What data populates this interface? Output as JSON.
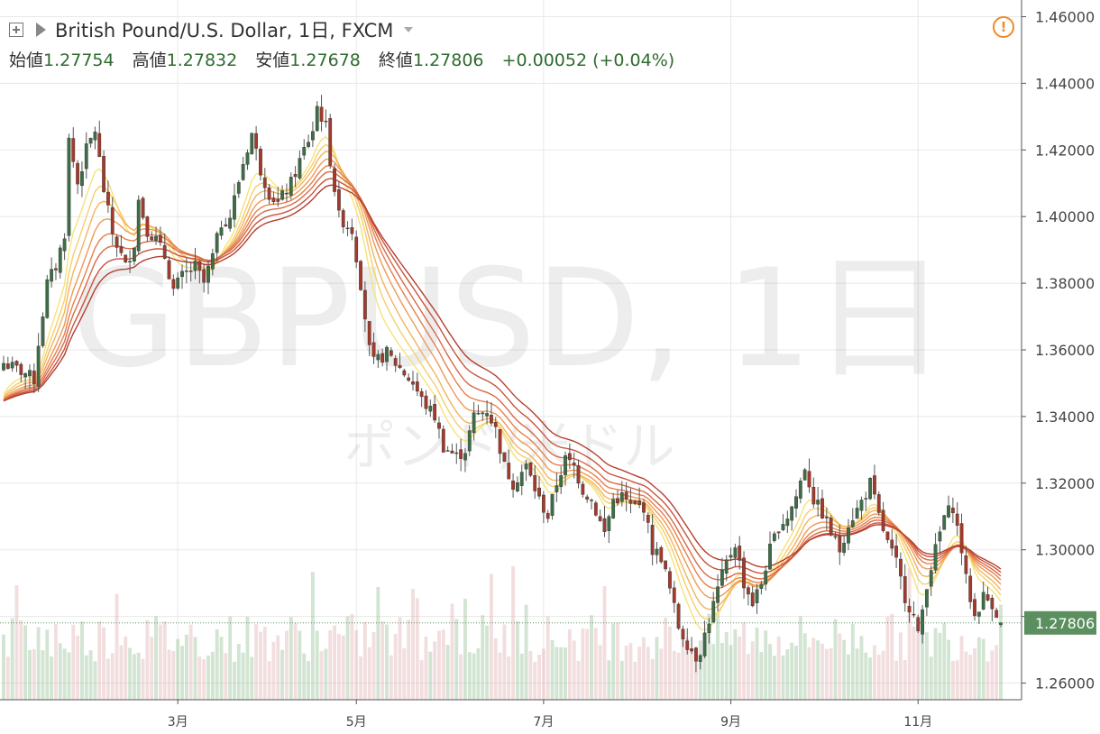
{
  "header": {
    "title": "British Pound/U.S. Dollar, 1日, FXCM",
    "open_label": "始値",
    "open": "1.27754",
    "high_label": "高値",
    "high": "1.27832",
    "low_label": "安値",
    "low": "1.27678",
    "close_label": "終値",
    "close": "1.27806",
    "change": "+0.00052 (+0.04%)"
  },
  "watermark": {
    "symbol": "GBPUSD, 1日",
    "name": "ポンド/米ドル"
  },
  "price_tag": "1.27806",
  "colors": {
    "up": "#3d6e45",
    "down": "#a33a2c",
    "grid": "#e8e8e8",
    "tag": "#5b8f5f",
    "warn": "#f08a24"
  },
  "chart_data": {
    "type": "candlestick",
    "symbol": "GBPUSD",
    "interval": "1日",
    "y_ticks": [
      "1.46000",
      "1.44000",
      "1.42000",
      "1.40000",
      "1.38000",
      "1.36000",
      "1.34000",
      "1.32000",
      "1.30000",
      "1.28000",
      "1.26000"
    ],
    "ylim": [
      1.255,
      1.465
    ],
    "x_ticks": [
      {
        "label": "3月",
        "idx": 40
      },
      {
        "label": "5月",
        "idx": 81
      },
      {
        "label": "7月",
        "idx": 124
      },
      {
        "label": "9月",
        "idx": 167
      },
      {
        "label": "11月",
        "idx": 210
      }
    ],
    "n_days": 230,
    "closes": [
      [
        0,
        1.356
      ],
      [
        5,
        1.353
      ],
      [
        7,
        1.351
      ],
      [
        8,
        1.362
      ],
      [
        10,
        1.38
      ],
      [
        12,
        1.385
      ],
      [
        14,
        1.395
      ],
      [
        15,
        1.423
      ],
      [
        17,
        1.41
      ],
      [
        19,
        1.42
      ],
      [
        21,
        1.426
      ],
      [
        23,
        1.408
      ],
      [
        25,
        1.395
      ],
      [
        28,
        1.385
      ],
      [
        30,
        1.392
      ],
      [
        31,
        1.405
      ],
      [
        33,
        1.396
      ],
      [
        35,
        1.393
      ],
      [
        37,
        1.388
      ],
      [
        39,
        1.378
      ],
      [
        41,
        1.382
      ],
      [
        44,
        1.385
      ],
      [
        46,
        1.38
      ],
      [
        48,
        1.388
      ],
      [
        50,
        1.398
      ],
      [
        52,
        1.4
      ],
      [
        55,
        1.416
      ],
      [
        57,
        1.425
      ],
      [
        59,
        1.414
      ],
      [
        61,
        1.407
      ],
      [
        63,
        1.404
      ],
      [
        66,
        1.41
      ],
      [
        69,
        1.42
      ],
      [
        71,
        1.426
      ],
      [
        72,
        1.433
      ],
      [
        74,
        1.427
      ],
      [
        75,
        1.417
      ],
      [
        77,
        1.4
      ],
      [
        80,
        1.396
      ],
      [
        82,
        1.38
      ],
      [
        83,
        1.37
      ],
      [
        84,
        1.36
      ],
      [
        85,
        1.356
      ],
      [
        88,
        1.359
      ],
      [
        90,
        1.356
      ],
      [
        92,
        1.353
      ],
      [
        94,
        1.35
      ],
      [
        96,
        1.345
      ],
      [
        99,
        1.34
      ],
      [
        101,
        1.331
      ],
      [
        104,
        1.328
      ],
      [
        106,
        1.33
      ],
      [
        108,
        1.34
      ],
      [
        111,
        1.342
      ],
      [
        113,
        1.336
      ],
      [
        115,
        1.325
      ],
      [
        117,
        1.32
      ],
      [
        120,
        1.325
      ],
      [
        123,
        1.315
      ],
      [
        125,
        1.31
      ],
      [
        127,
        1.32
      ],
      [
        129,
        1.327
      ],
      [
        131,
        1.325
      ],
      [
        133,
        1.318
      ],
      [
        135,
        1.315
      ],
      [
        138,
        1.305
      ],
      [
        140,
        1.315
      ],
      [
        142,
        1.316
      ],
      [
        144,
        1.313
      ],
      [
        147,
        1.313
      ],
      [
        149,
        1.3
      ],
      [
        151,
        1.298
      ],
      [
        153,
        1.288
      ],
      [
        155,
        1.277
      ],
      [
        157,
        1.272
      ],
      [
        159,
        1.268
      ],
      [
        160,
        1.27
      ],
      [
        162,
        1.279
      ],
      [
        164,
        1.288
      ],
      [
        166,
        1.296
      ],
      [
        168,
        1.302
      ],
      [
        170,
        1.29
      ],
      [
        172,
        1.284
      ],
      [
        174,
        1.29
      ],
      [
        176,
        1.3
      ],
      [
        178,
        1.307
      ],
      [
        180,
        1.31
      ],
      [
        182,
        1.316
      ],
      [
        184,
        1.325
      ],
      [
        186,
        1.315
      ],
      [
        188,
        1.311
      ],
      [
        190,
        1.305
      ],
      [
        192,
        1.3
      ],
      [
        194,
        1.308
      ],
      [
        196,
        1.312
      ],
      [
        198,
        1.317
      ],
      [
        199,
        1.32
      ],
      [
        201,
        1.31
      ],
      [
        203,
        1.302
      ],
      [
        205,
        1.296
      ],
      [
        207,
        1.286
      ],
      [
        209,
        1.28
      ],
      [
        210,
        1.274
      ],
      [
        212,
        1.29
      ],
      [
        214,
        1.3
      ],
      [
        216,
        1.31
      ],
      [
        218,
        1.313
      ],
      [
        220,
        1.3
      ],
      [
        221,
        1.291
      ],
      [
        223,
        1.28
      ],
      [
        225,
        1.286
      ],
      [
        227,
        1.284
      ],
      [
        229,
        1.2781
      ]
    ],
    "ma_bands": 8
  }
}
